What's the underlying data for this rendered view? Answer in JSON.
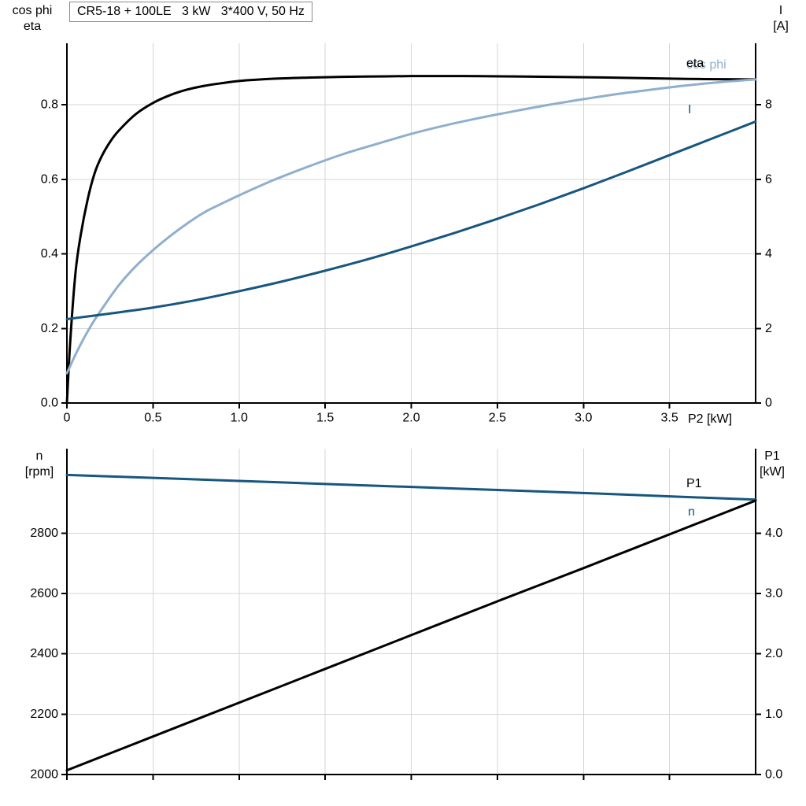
{
  "colors": {
    "black": "#000000",
    "dark_blue": "#17567f",
    "light_blue": "#8fafcd",
    "grid": "#d6d6d6",
    "axis": "#000000",
    "background": "#ffffff"
  },
  "chart_data": [
    {
      "id": "top",
      "type": "line",
      "title": "CR5-18 + 100LE   3 kW   3*400 V, 50 Hz",
      "x_axis": {
        "label": "P2 [kW]",
        "min": 0,
        "max": 4,
        "ticks": [
          0,
          0.5,
          1,
          1.5,
          2,
          2.5,
          3,
          3.5
        ],
        "tick_labels": [
          "0",
          "0.5",
          "1.0",
          "1.5",
          "2.0",
          "2.5",
          "3.0",
          "3.5"
        ],
        "grid": true
      },
      "y_left": {
        "label_lines": [
          "cos phi",
          "eta"
        ],
        "min": 0,
        "max": 0.965,
        "ticks": [
          0,
          0.2,
          0.4,
          0.6,
          0.8
        ],
        "tick_labels": [
          "0.0",
          "0.2",
          "0.4",
          "0.6",
          "0.8"
        ],
        "grid": true
      },
      "y_right": {
        "label_lines": [
          "I",
          "[A]"
        ],
        "min": 0,
        "max": 9.65,
        "ticks": [
          0,
          2,
          4,
          6,
          8
        ],
        "tick_labels": [
          "0",
          "2",
          "4",
          "6",
          "8"
        ]
      },
      "series": [
        {
          "key": "eta",
          "name": "eta",
          "axis": "left",
          "color": "black",
          "points": [
            [
              0,
              0
            ],
            [
              0.02,
              0.17
            ],
            [
              0.05,
              0.35
            ],
            [
              0.08,
              0.45
            ],
            [
              0.12,
              0.545
            ],
            [
              0.16,
              0.615
            ],
            [
              0.2,
              0.66
            ],
            [
              0.25,
              0.7
            ],
            [
              0.3,
              0.73
            ],
            [
              0.4,
              0.775
            ],
            [
              0.5,
              0.805
            ],
            [
              0.6,
              0.826
            ],
            [
              0.7,
              0.841
            ],
            [
              0.8,
              0.851
            ],
            [
              0.9,
              0.858
            ],
            [
              1,
              0.864
            ],
            [
              1.2,
              0.87
            ],
            [
              1.4,
              0.873
            ],
            [
              1.6,
              0.875
            ],
            [
              1.8,
              0.876
            ],
            [
              2,
              0.877
            ],
            [
              2.3,
              0.877
            ],
            [
              2.6,
              0.876
            ],
            [
              3,
              0.874
            ],
            [
              3.4,
              0.871
            ],
            [
              3.7,
              0.869
            ],
            [
              4,
              0.868
            ]
          ]
        },
        {
          "key": "cos-phi",
          "name": "cos phi",
          "axis": "left",
          "color": "light_blue",
          "points": [
            [
              0,
              0.08
            ],
            [
              0.05,
              0.13
            ],
            [
              0.1,
              0.175
            ],
            [
              0.15,
              0.215
            ],
            [
              0.2,
              0.25
            ],
            [
              0.3,
              0.315
            ],
            [
              0.4,
              0.367
            ],
            [
              0.5,
              0.41
            ],
            [
              0.6,
              0.448
            ],
            [
              0.7,
              0.482
            ],
            [
              0.8,
              0.512
            ],
            [
              0.9,
              0.535
            ],
            [
              1,
              0.557
            ],
            [
              1.2,
              0.598
            ],
            [
              1.4,
              0.634
            ],
            [
              1.6,
              0.667
            ],
            [
              1.8,
              0.695
            ],
            [
              2,
              0.722
            ],
            [
              2.2,
              0.745
            ],
            [
              2.4,
              0.765
            ],
            [
              2.6,
              0.783
            ],
            [
              2.8,
              0.8
            ],
            [
              3,
              0.815
            ],
            [
              3.2,
              0.829
            ],
            [
              3.4,
              0.841
            ],
            [
              3.6,
              0.852
            ],
            [
              3.8,
              0.861
            ],
            [
              4,
              0.868
            ]
          ]
        },
        {
          "key": "current",
          "name": "I",
          "axis": "right",
          "color": "dark_blue",
          "points": [
            [
              0,
              2.25
            ],
            [
              0.25,
              2.4
            ],
            [
              0.5,
              2.56
            ],
            [
              0.75,
              2.76
            ],
            [
              1,
              3
            ],
            [
              1.25,
              3.26
            ],
            [
              1.5,
              3.55
            ],
            [
              1.75,
              3.86
            ],
            [
              2,
              4.2
            ],
            [
              2.25,
              4.56
            ],
            [
              2.5,
              4.94
            ],
            [
              2.75,
              5.34
            ],
            [
              3,
              5.76
            ],
            [
              3.25,
              6.2
            ],
            [
              3.5,
              6.65
            ],
            [
              3.75,
              7.1
            ],
            [
              4,
              7.55
            ]
          ]
        }
      ]
    },
    {
      "id": "bottom",
      "type": "line",
      "title": "",
      "x_axis": {
        "label": "",
        "min": 0,
        "max": 4,
        "ticks": [
          0,
          0.5,
          1,
          1.5,
          2,
          2.5,
          3,
          3.5
        ],
        "tick_labels": [],
        "grid": true
      },
      "y_left": {
        "label_lines": [
          "n",
          "[rpm]"
        ],
        "min": 2000,
        "max": 3080,
        "ticks": [
          2000,
          2200,
          2400,
          2600,
          2800
        ],
        "tick_labels": [
          "2000",
          "2200",
          "2400",
          "2600",
          "2800"
        ],
        "grid": true
      },
      "y_right": {
        "label_lines": [
          "P1",
          "[kW]"
        ],
        "min": 0,
        "max": 5.4,
        "ticks": [
          0,
          1,
          2,
          3,
          4
        ],
        "tick_labels": [
          "0.0",
          "1.0",
          "2.0",
          "3.0",
          "4.0"
        ]
      },
      "series": [
        {
          "key": "speed",
          "name": "n",
          "axis": "left",
          "color": "dark_blue",
          "points": [
            [
              0,
              2993
            ],
            [
              0.5,
              2983
            ],
            [
              1,
              2973
            ],
            [
              1.5,
              2963
            ],
            [
              2,
              2953
            ],
            [
              2.5,
              2943
            ],
            [
              3,
              2933
            ],
            [
              3.5,
              2922
            ],
            [
              4,
              2911
            ]
          ]
        },
        {
          "key": "input-power",
          "name": "P1",
          "axis": "right",
          "color": "black",
          "points": [
            [
              0,
              0.07
            ],
            [
              0.5,
              0.63
            ],
            [
              1,
              1.19
            ],
            [
              1.5,
              1.75
            ],
            [
              2,
              2.31
            ],
            [
              2.5,
              2.87
            ],
            [
              3,
              3.42
            ],
            [
              3.5,
              3.98
            ],
            [
              4,
              4.54
            ]
          ]
        }
      ]
    }
  ]
}
